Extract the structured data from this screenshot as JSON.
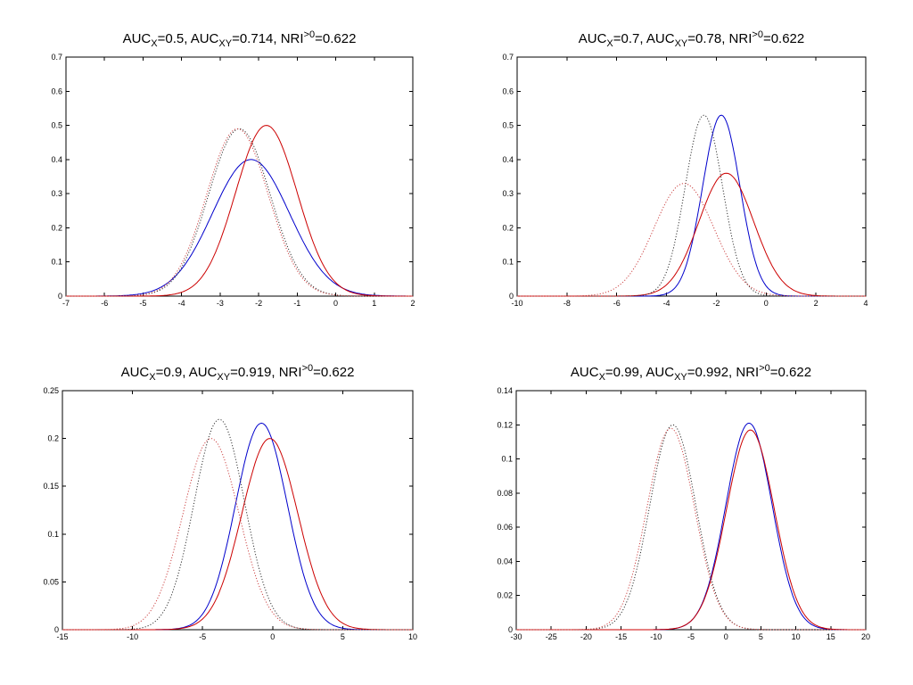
{
  "chart_data": [
    {
      "type": "line",
      "title_parts": [
        [
          "AUC",
          "X",
          "=0.5, "
        ],
        [
          "AUC",
          "XY",
          "=0.714, "
        ],
        [
          "NRI",
          ">0",
          "=0.622"
        ]
      ],
      "xlim": [
        -7,
        2
      ],
      "ylim": [
        0,
        0.7
      ],
      "xticks": [
        -7,
        -6,
        -5,
        -4,
        -3,
        -2,
        -1,
        0,
        1,
        2
      ],
      "yticks": [
        0,
        0.1,
        0.2,
        0.3,
        0.4,
        0.5,
        0.6,
        0.7
      ],
      "xtick_labels": [
        "-7",
        "-6",
        "-5",
        "-4",
        "-3",
        "-2",
        "-1",
        "0",
        "1",
        "2"
      ],
      "ytick_labels": [
        "0",
        "0.1",
        "0.2",
        "0.3",
        "0.4",
        "0.5",
        "0.6",
        "0.7"
      ],
      "series": [
        {
          "name": "blue-solid",
          "color": "#0000cc",
          "style": "solid",
          "peak": 0.4,
          "mean": -2.2,
          "sd": 1.0
        },
        {
          "name": "red-solid",
          "color": "#cc0000",
          "style": "solid",
          "peak": 0.5,
          "mean": -1.8,
          "sd": 0.8
        },
        {
          "name": "black-dotted",
          "color": "#333333",
          "style": "dotted",
          "peak": 0.49,
          "mean": -2.5,
          "sd": 0.8
        },
        {
          "name": "red-dotted",
          "color": "#cc4444",
          "style": "dotted",
          "peak": 0.49,
          "mean": -2.55,
          "sd": 0.8
        }
      ]
    },
    {
      "type": "line",
      "title_parts": [
        [
          "AUC",
          "X",
          "=0.7, "
        ],
        [
          "AUC",
          "XY",
          "=0.78, "
        ],
        [
          "NRI",
          ">0",
          "=0.622"
        ]
      ],
      "xlim": [
        -10,
        4
      ],
      "ylim": [
        0,
        0.7
      ],
      "xticks": [
        -10,
        -8,
        -6,
        -4,
        -2,
        0,
        2,
        4
      ],
      "yticks": [
        0,
        0.1,
        0.2,
        0.3,
        0.4,
        0.5,
        0.6,
        0.7
      ],
      "xtick_labels": [
        "-10",
        "-8",
        "-6",
        "-4",
        "-2",
        "0",
        "2",
        "4"
      ],
      "ytick_labels": [
        "0",
        "0.1",
        "0.2",
        "0.3",
        "0.4",
        "0.5",
        "0.6",
        "0.7"
      ],
      "series": [
        {
          "name": "blue-solid",
          "color": "#0000cc",
          "style": "solid",
          "peak": 0.53,
          "mean": -1.8,
          "sd": 0.75
        },
        {
          "name": "red-solid",
          "color": "#cc0000",
          "style": "solid",
          "peak": 0.36,
          "mean": -1.6,
          "sd": 1.1
        },
        {
          "name": "black-dotted",
          "color": "#333333",
          "style": "dotted",
          "peak": 0.53,
          "mean": -2.5,
          "sd": 0.75
        },
        {
          "name": "red-dotted",
          "color": "#cc4444",
          "style": "dotted",
          "peak": 0.33,
          "mean": -3.3,
          "sd": 1.2
        }
      ]
    },
    {
      "type": "line",
      "title_parts": [
        [
          "AUC",
          "X",
          "=0.9, "
        ],
        [
          "AUC",
          "XY",
          "=0.919, "
        ],
        [
          "NRI",
          ">0",
          "=0.622"
        ]
      ],
      "xlim": [
        -15,
        10
      ],
      "ylim": [
        0,
        0.25
      ],
      "xticks": [
        -15,
        -10,
        -5,
        0,
        5,
        10
      ],
      "yticks": [
        0,
        0.05,
        0.1,
        0.15,
        0.2,
        0.25
      ],
      "xtick_labels": [
        "-15",
        "-10",
        "-5",
        "0",
        "5",
        "10"
      ],
      "ytick_labels": [
        "0",
        "0.05",
        "0.1",
        "0.15",
        "0.2",
        "0.25"
      ],
      "series": [
        {
          "name": "blue-solid",
          "color": "#0000cc",
          "style": "solid",
          "peak": 0.216,
          "mean": -0.8,
          "sd": 1.85
        },
        {
          "name": "red-solid",
          "color": "#cc0000",
          "style": "solid",
          "peak": 0.2,
          "mean": -0.2,
          "sd": 2.0
        },
        {
          "name": "black-dotted",
          "color": "#333333",
          "style": "dotted",
          "peak": 0.22,
          "mean": -3.8,
          "sd": 1.8
        },
        {
          "name": "red-dotted",
          "color": "#cc4444",
          "style": "dotted",
          "peak": 0.2,
          "mean": -4.4,
          "sd": 2.0
        }
      ]
    },
    {
      "type": "line",
      "title_parts": [
        [
          "AUC",
          "X",
          "=0.99, "
        ],
        [
          "AUC",
          "XY",
          "=0.992, "
        ],
        [
          "NRI",
          ">0",
          "=0.622"
        ]
      ],
      "xlim": [
        -30,
        20
      ],
      "ylim": [
        0,
        0.14
      ],
      "xticks": [
        -30,
        -25,
        -20,
        -15,
        -10,
        -5,
        0,
        5,
        10,
        15,
        20
      ],
      "yticks": [
        0,
        0.02,
        0.04,
        0.06,
        0.08,
        0.1,
        0.12,
        0.14
      ],
      "xtick_labels": [
        "-30",
        "-25",
        "-20",
        "-15",
        "-10",
        "-5",
        "0",
        "5",
        "10",
        "15",
        "20"
      ],
      "ytick_labels": [
        "0",
        "0.02",
        "0.04",
        "0.06",
        "0.08",
        "0.1",
        "0.12",
        "0.14"
      ],
      "series": [
        {
          "name": "blue-solid",
          "color": "#0000cc",
          "style": "solid",
          "peak": 0.121,
          "mean": 3.3,
          "sd": 3.3
        },
        {
          "name": "red-solid",
          "color": "#cc0000",
          "style": "solid",
          "peak": 0.117,
          "mean": 3.5,
          "sd": 3.4
        },
        {
          "name": "black-dotted",
          "color": "#333333",
          "style": "dotted",
          "peak": 0.12,
          "mean": -7.6,
          "sd": 3.3
        },
        {
          "name": "red-dotted",
          "color": "#cc4444",
          "style": "dotted",
          "peak": 0.118,
          "mean": -7.9,
          "sd": 3.4
        }
      ]
    }
  ]
}
